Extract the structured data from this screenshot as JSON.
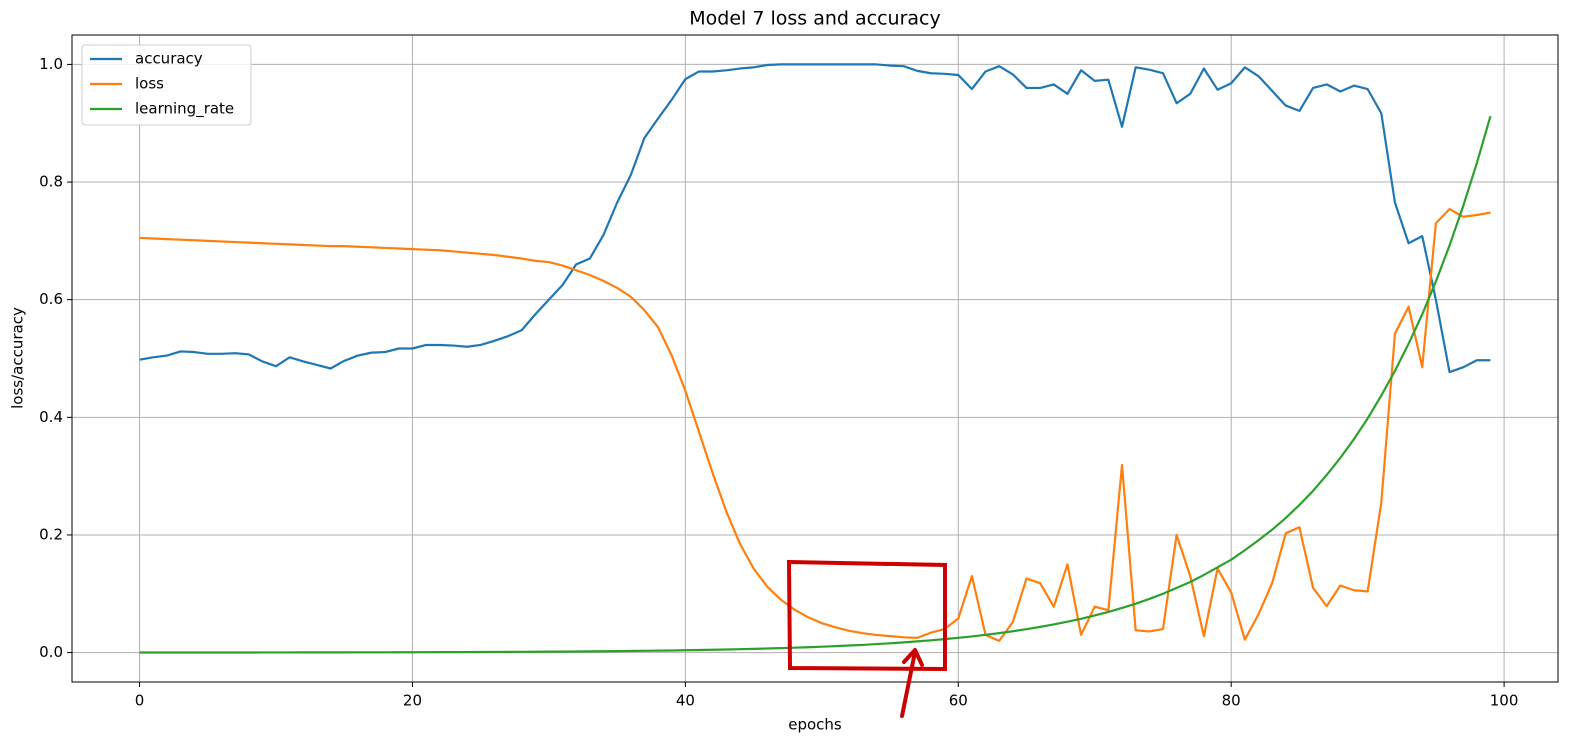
{
  "chart_data": {
    "type": "line",
    "title": "Model 7 loss and accuracy",
    "xlabel": "epochs",
    "ylabel": "loss/accuracy",
    "x": [
      0,
      1,
      2,
      3,
      4,
      5,
      6,
      7,
      8,
      9,
      10,
      11,
      12,
      13,
      14,
      15,
      16,
      17,
      18,
      19,
      20,
      21,
      22,
      23,
      24,
      25,
      26,
      27,
      28,
      29,
      30,
      31,
      32,
      33,
      34,
      35,
      36,
      37,
      38,
      39,
      40,
      41,
      42,
      43,
      44,
      45,
      46,
      47,
      48,
      49,
      50,
      51,
      52,
      53,
      54,
      55,
      56,
      57,
      58,
      59,
      60,
      61,
      62,
      63,
      64,
      65,
      66,
      67,
      68,
      69,
      70,
      71,
      72,
      73,
      74,
      75,
      76,
      77,
      78,
      79,
      80,
      81,
      82,
      83,
      84,
      85,
      86,
      87,
      88,
      89,
      90,
      91,
      92,
      93,
      94,
      95,
      96,
      97,
      98,
      99
    ],
    "series": [
      {
        "name": "accuracy",
        "color": "#1f77b4",
        "values": [
          0.498,
          0.502,
          0.505,
          0.512,
          0.511,
          0.508,
          0.508,
          0.509,
          0.507,
          0.495,
          0.487,
          0.502,
          0.495,
          0.489,
          0.483,
          0.496,
          0.505,
          0.51,
          0.511,
          0.517,
          0.517,
          0.523,
          0.523,
          0.522,
          0.52,
          0.523,
          0.53,
          0.538,
          0.548,
          0.575,
          0.6,
          0.625,
          0.66,
          0.67,
          0.71,
          0.765,
          0.812,
          0.875,
          0.908,
          0.94,
          0.975,
          0.988,
          0.988,
          0.99,
          0.993,
          0.995,
          0.999,
          1.0,
          1.0,
          1.0,
          1.0,
          1.0,
          1.0,
          1.0,
          1.0,
          0.998,
          0.997,
          0.989,
          0.985,
          0.984,
          0.982,
          0.958,
          0.988,
          0.997,
          0.983,
          0.96,
          0.96,
          0.966,
          0.95,
          0.99,
          0.972,
          0.974,
          0.894,
          0.995,
          0.991,
          0.985,
          0.934,
          0.95,
          0.993,
          0.957,
          0.968,
          0.995,
          0.98,
          0.955,
          0.93,
          0.921,
          0.96,
          0.966,
          0.954,
          0.964,
          0.958,
          0.917,
          0.765,
          0.696,
          0.708,
          0.6,
          0.477,
          0.485,
          0.497,
          0.497
        ]
      },
      {
        "name": "loss",
        "color": "#ff7f0e",
        "values": [
          0.705,
          0.704,
          0.703,
          0.702,
          0.701,
          0.7,
          0.699,
          0.698,
          0.697,
          0.696,
          0.695,
          0.694,
          0.693,
          0.692,
          0.691,
          0.691,
          0.69,
          0.689,
          0.688,
          0.687,
          0.686,
          0.685,
          0.684,
          0.682,
          0.68,
          0.678,
          0.676,
          0.673,
          0.67,
          0.666,
          0.664,
          0.658,
          0.65,
          0.642,
          0.632,
          0.62,
          0.605,
          0.582,
          0.553,
          0.505,
          0.445,
          0.375,
          0.305,
          0.24,
          0.185,
          0.143,
          0.112,
          0.09,
          0.073,
          0.06,
          0.05,
          0.043,
          0.037,
          0.033,
          0.03,
          0.028,
          0.026,
          0.025,
          0.034,
          0.04,
          0.058,
          0.13,
          0.03,
          0.02,
          0.052,
          0.126,
          0.118,
          0.078,
          0.15,
          0.03,
          0.078,
          0.072,
          0.319,
          0.038,
          0.036,
          0.04,
          0.2,
          0.13,
          0.028,
          0.143,
          0.102,
          0.022,
          0.065,
          0.118,
          0.203,
          0.213,
          0.11,
          0.079,
          0.114,
          0.106,
          0.104,
          0.255,
          0.542,
          0.588,
          0.485,
          0.73,
          0.754,
          0.741,
          0.744,
          0.748
        ]
      },
      {
        "name": "learning_rate",
        "color": "#2ca02c",
        "values": [
          0.0001,
          0.00011,
          0.00012,
          0.00013,
          0.00014,
          0.00016,
          0.00017,
          0.00019,
          0.00021,
          0.00023,
          0.00025,
          0.00028,
          0.0003,
          0.00033,
          0.00036,
          0.0004,
          0.00044,
          0.00048,
          0.00052,
          0.00058,
          0.00063,
          0.00069,
          0.00076,
          0.00083,
          0.00091,
          0.001,
          0.0011,
          0.0012,
          0.0013,
          0.0014,
          0.0016,
          0.0017,
          0.0019,
          0.0021,
          0.0023,
          0.0025,
          0.0028,
          0.003,
          0.0033,
          0.0036,
          0.004,
          0.0044,
          0.0048,
          0.0052,
          0.0058,
          0.0063,
          0.0069,
          0.0076,
          0.0083,
          0.0091,
          0.01,
          0.011,
          0.012,
          0.013,
          0.0145,
          0.0158,
          0.0174,
          0.0191,
          0.0209,
          0.0229,
          0.0251,
          0.0275,
          0.0302,
          0.0331,
          0.0363,
          0.0398,
          0.0437,
          0.0479,
          0.0525,
          0.0575,
          0.0631,
          0.0692,
          0.0759,
          0.0832,
          0.0912,
          0.1,
          0.11,
          0.12,
          0.132,
          0.145,
          0.158,
          0.174,
          0.191,
          0.209,
          0.229,
          0.251,
          0.275,
          0.302,
          0.331,
          0.363,
          0.398,
          0.437,
          0.479,
          0.525,
          0.575,
          0.631,
          0.692,
          0.759,
          0.832,
          0.912
        ]
      }
    ],
    "xlim": [
      -4.95,
      103.95
    ],
    "xticks": [
      0,
      20,
      40,
      60,
      80,
      100
    ],
    "ylim": [
      -0.05,
      1.05
    ],
    "yticks": [
      {
        "value": 0.0,
        "label": "0.0"
      },
      0.2,
      0.4,
      0.6,
      0.8,
      {
        "value": 1.0,
        "label": "1.0"
      }
    ],
    "grid": true,
    "legend": "upper left"
  }
}
